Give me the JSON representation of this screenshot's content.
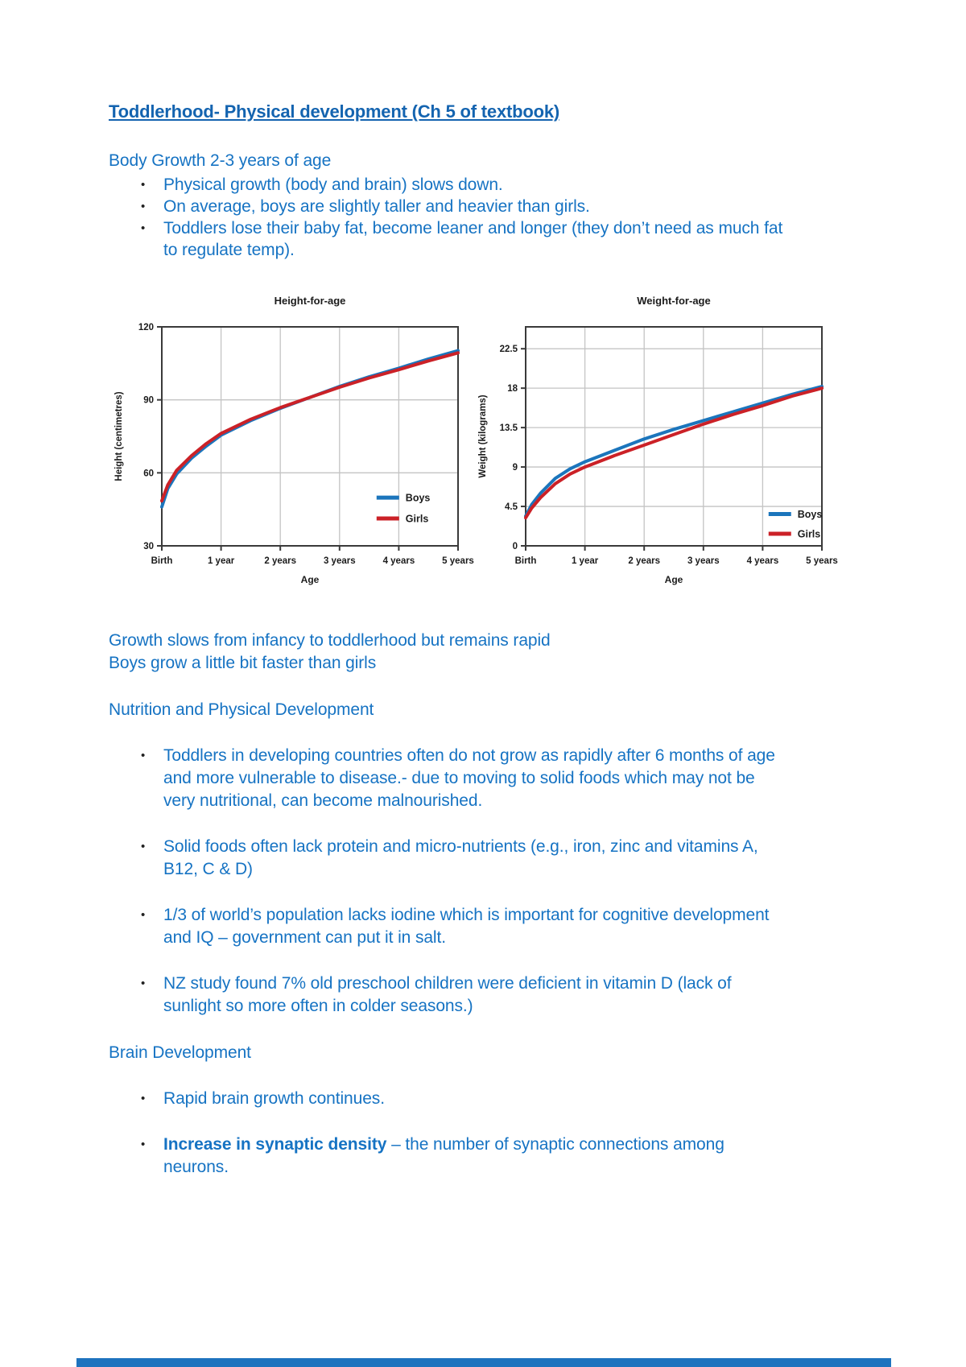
{
  "page": {
    "title": "Toddlerhood- Physical development (Ch 5 of textbook)",
    "sections": {
      "body_growth": {
        "heading": "Body Growth 2-3 years of age",
        "bullets": [
          "Physical growth (body and brain) slows down.",
          "On average, boys are slightly taller and heavier than girls.",
          "Toddlers lose their baby fat, become leaner and longer (they don’t need as much fat to regulate temp)."
        ]
      },
      "growth_note": {
        "line1": "Growth slows from infancy to toddlerhood but remains rapid",
        "line2": "Boys grow a little bit faster than girls"
      },
      "nutrition": {
        "heading": "Nutrition and Physical Development",
        "bullets": [
          "Toddlers in developing countries often do not grow as rapidly after 6 months of age and more vulnerable to disease.- due to moving to solid foods which may not be very nutritional, can become malnourished.",
          "Solid foods often lack protein and micro-nutrients (e.g., iron, zinc and vitamins A, B12, C & D)",
          "1/3 of world’s population lacks iodine which is important for cognitive development and IQ – government can put it in salt.",
          "NZ study found 7% old preschool children were deficient in vitamin D (lack of sunlight so more often in colder seasons.)"
        ]
      },
      "brain": {
        "heading": "Brain Development",
        "bullet_plain": "Rapid brain growth continues.",
        "bullet_bold": {
          "lead": "Increase in synaptic density",
          "rest": " – the number of synaptic connections among neurons."
        }
      }
    },
    "colors": {
      "text_blue": "#1673c3",
      "title_blue": "#1464b0",
      "boys_blue": "#1b75bc",
      "girls_red": "#cb2127",
      "bottom_bar_blue": "#1e73be"
    }
  },
  "chart_data": [
    {
      "type": "line",
      "title": "Height-for-age",
      "xlabel": "Age",
      "ylabel": "Height (centimetres)",
      "x_tick_labels": [
        "Birth",
        "1 year",
        "2 years",
        "3 years",
        "4 years",
        "5 years"
      ],
      "x_tick_years": [
        0,
        1,
        2,
        3,
        4,
        5
      ],
      "x": [
        0,
        0.1,
        0.25,
        0.5,
        0.75,
        1,
        1.5,
        2,
        2.5,
        3,
        3.5,
        4,
        4.5,
        5
      ],
      "ylim": [
        30,
        120
      ],
      "yticks": [
        30,
        60,
        90,
        120
      ],
      "grid": true,
      "legend_position": "inside bottom-right",
      "legend_layout": {
        "x_frac": 0.725,
        "row_fracs": [
          0.78,
          0.875
        ]
      },
      "series": [
        {
          "name": "Boys",
          "color": "#1b75bc",
          "values": [
            46,
            53.5,
            59.5,
            66,
            71,
            75.5,
            81.5,
            86.5,
            91,
            95.5,
            99.5,
            103,
            106.8,
            110.2
          ]
        },
        {
          "name": "Girls",
          "color": "#cb2127",
          "values": [
            48.5,
            55,
            61,
            67,
            72,
            76.2,
            82,
            86.8,
            91,
            95.2,
            99,
            102.4,
            106,
            109.3
          ]
        }
      ]
    },
    {
      "type": "line",
      "title": "Weight-for-age",
      "xlabel": "Age",
      "ylabel": "Weight (kilograms)",
      "x_tick_labels": [
        "Birth",
        "1 year",
        "2 years",
        "3 years",
        "4 years",
        "5 years"
      ],
      "x_tick_years": [
        0,
        1,
        2,
        3,
        4,
        5
      ],
      "x": [
        0,
        0.1,
        0.25,
        0.5,
        0.75,
        1,
        1.5,
        2,
        2.5,
        3,
        3.5,
        4,
        4.5,
        5
      ],
      "ylim": [
        0,
        25
      ],
      "yticks": [
        0,
        4.5,
        9,
        13.5,
        18,
        22.5
      ],
      "grid": true,
      "legend_position": "inside bottom-right",
      "legend_layout": {
        "x_frac": 0.82,
        "row_fracs": [
          0.855,
          0.945
        ]
      },
      "series": [
        {
          "name": "Boys",
          "color": "#1b75bc",
          "values": [
            3.4,
            4.7,
            6.0,
            7.7,
            8.8,
            9.6,
            10.9,
            12.2,
            13.3,
            14.3,
            15.3,
            16.3,
            17.3,
            18.2
          ]
        },
        {
          "name": "Girls",
          "color": "#cb2127",
          "values": [
            3.2,
            4.3,
            5.5,
            7.1,
            8.2,
            9.0,
            10.3,
            11.5,
            12.7,
            13.9,
            15.0,
            16.0,
            17.1,
            18.0
          ]
        }
      ]
    }
  ]
}
